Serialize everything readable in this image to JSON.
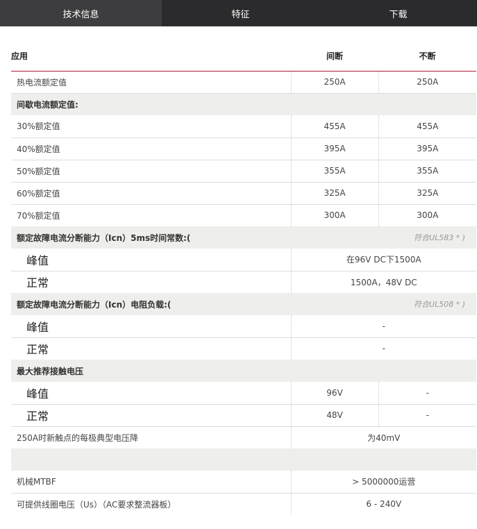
{
  "tabs": [
    "技术信息",
    "特征",
    "下载"
  ],
  "header": {
    "app": "应用",
    "c1": "间断",
    "c2": "不断"
  },
  "rows": {
    "thermal": {
      "label": "热电流额定值",
      "v1": "250A",
      "v2": "250A"
    },
    "intermittent": "间歇电流额定值:",
    "r30": {
      "label": "30%额定值",
      "v1": "455A",
      "v2": "455A"
    },
    "r40": {
      "label": "40%额定值",
      "v1": "395A",
      "v2": "395A"
    },
    "r50": {
      "label": "50%额定值",
      "v1": "355A",
      "v2": "355A"
    },
    "r60": {
      "label": "60%额定值",
      "v1": "325A",
      "v2": "325A"
    },
    "r70": {
      "label": "70%额定值",
      "v1": "300A",
      "v2": "300A"
    },
    "icn5ms": {
      "label": "额定故障电流分断能力（Icn）5ms时间常数:(",
      "note": "符合UL583 * )"
    },
    "icn5ms_peak": {
      "label": "峰值",
      "v": "在96V DC下1500A"
    },
    "icn5ms_normal": {
      "label": "正常",
      "v": "1500A，48V DC"
    },
    "icnres": {
      "label": "额定故障电流分断能力（Icn）电阻负载:(",
      "note": "符合UL508 * )"
    },
    "icnres_peak": {
      "label": "峰值",
      "v": "-"
    },
    "icnres_normal": {
      "label": "正常",
      "v": "-"
    },
    "maxv": "最大推荐接触电压",
    "maxv_peak": {
      "label": "峰值",
      "v1": "96V",
      "v2": "-"
    },
    "maxv_normal": {
      "label": "正常",
      "v1": "48V",
      "v2": "-"
    },
    "drop": {
      "label": "250A时新触点的每极典型电压降",
      "v": "为40mV"
    },
    "mtbf": {
      "label": "机械MTBF",
      "v": "> 5000000运营"
    },
    "coil": {
      "label": "可提供线圈电压（Us）（AC要求整流器板）",
      "v": "6 - 240V"
    }
  }
}
